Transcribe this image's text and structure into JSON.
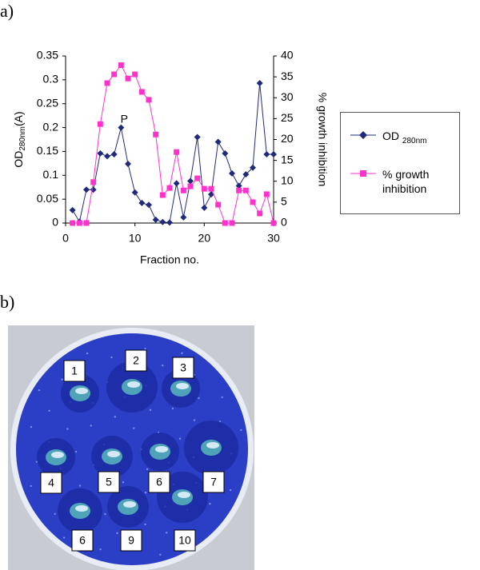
{
  "figure": {
    "panel_a": "a)",
    "panel_b": "b)",
    "plate_labels": [
      "1",
      "2",
      "3",
      "4",
      "5",
      "6",
      "7",
      "6",
      "9",
      "10"
    ]
  },
  "chart_data": {
    "type": "line",
    "ylabel": {
      "text": "OD",
      "subscript": "280nm",
      "suffix": "(A)"
    },
    "y2label": "% growth inhibition",
    "xlabel": "Fraction no.",
    "x": [
      1,
      2,
      3,
      4,
      5,
      6,
      7,
      8,
      9,
      10,
      11,
      12,
      13,
      14,
      15,
      16,
      17,
      18,
      19,
      20,
      21,
      22,
      23,
      24,
      25,
      26,
      27,
      28,
      29,
      30
    ],
    "series": [
      {
        "name": "OD",
        "name_subscript": "280nm",
        "color": "#1f2a7a",
        "marker": "diamond",
        "values": [
          0.027,
          0.003,
          0.07,
          0.07,
          0.146,
          0.14,
          0.144,
          0.2,
          0.124,
          0.064,
          0.042,
          0.038,
          0.007,
          0.002,
          0.001,
          0.083,
          0.012,
          0.088,
          0.18,
          0.032,
          0.06,
          0.17,
          0.146,
          0.104,
          0.078,
          0.102,
          0.116,
          0.293,
          0.144,
          0.144
        ]
      },
      {
        "name": "% growth inhibition",
        "color": "#ff33cc",
        "marker": "square",
        "axis": "y2",
        "values": [
          0,
          0,
          0,
          9.8,
          23.7,
          33.5,
          35.6,
          37.8,
          34.6,
          35.6,
          31.4,
          29.5,
          21.2,
          6.7,
          8.4,
          17,
          7.8,
          8.8,
          10.7,
          8.2,
          8.2,
          4.4,
          0,
          0,
          7.8,
          7.8,
          5,
          2.3,
          6.9,
          0
        ]
      }
    ],
    "xlim": [
      0,
      30
    ],
    "xticks": [
      0,
      10,
      20,
      30
    ],
    "ylim": [
      0,
      0.35
    ],
    "yticks": [
      0,
      0.05,
      0.1,
      0.15,
      0.2,
      0.25,
      0.3,
      0.35
    ],
    "y2lim": [
      0,
      40
    ],
    "y2ticks": [
      0,
      5,
      10,
      15,
      20,
      25,
      30,
      35,
      40
    ],
    "annotations": [
      {
        "text": "P",
        "x": 8,
        "y": 0.2
      }
    ]
  }
}
